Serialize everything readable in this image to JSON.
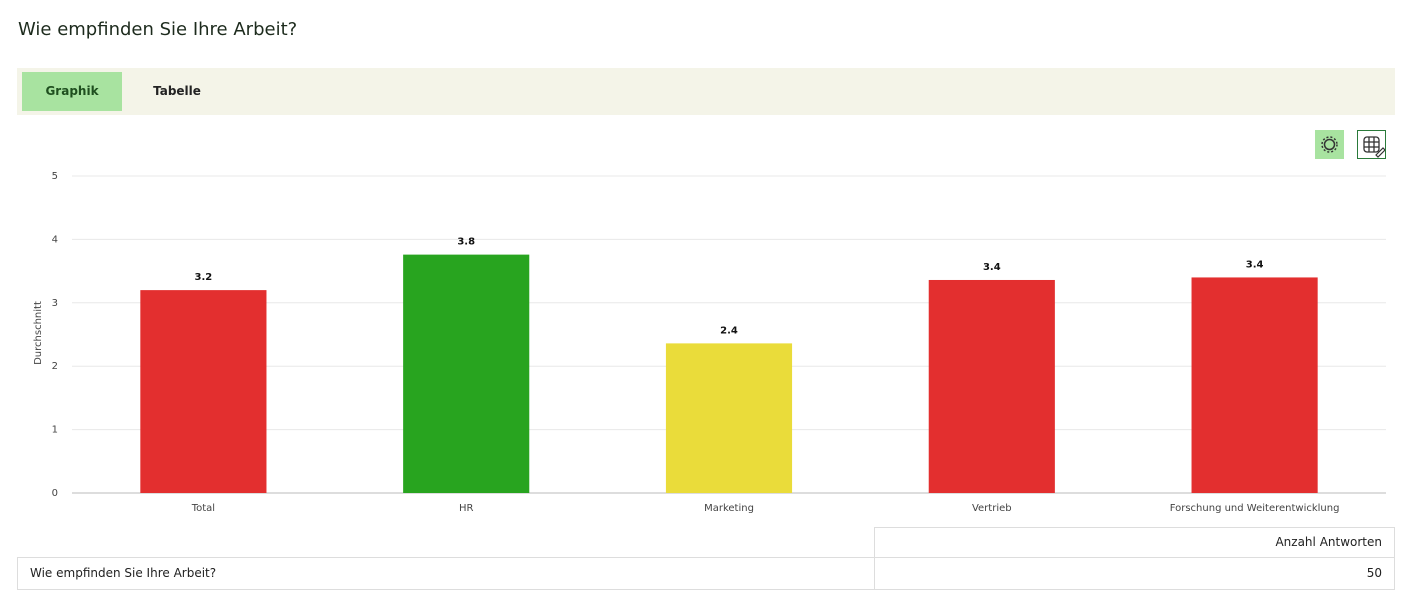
{
  "page": {
    "title": "Wie empfinden Sie Ihre Arbeit?",
    "tabs": [
      "Graphik",
      "Tabelle"
    ]
  },
  "chart_data": {
    "type": "bar",
    "y_label": "Durchschnitt",
    "categories": [
      "Total",
      "HR",
      "Marketing",
      "Vertrieb",
      "Forschung und Weiterentwicklung"
    ],
    "values": [
      3.2,
      3.76,
      2.36,
      3.36,
      3.4
    ],
    "value_labels": [
      "3.2",
      "3.8",
      "2.4",
      "3.4",
      "3.4"
    ],
    "colors": [
      "#e32f2f",
      "#28a41f",
      "#eadc3a",
      "#e32f2f",
      "#e32f2f"
    ],
    "ylim": [
      0,
      5
    ],
    "yticks": [
      0,
      1,
      2,
      3,
      4,
      5
    ],
    "grid": true
  },
  "table": {
    "header": "Anzahl Antworten",
    "rows": [
      [
        "Wie empfinden Sie Ihre Arbeit?",
        50
      ]
    ]
  }
}
